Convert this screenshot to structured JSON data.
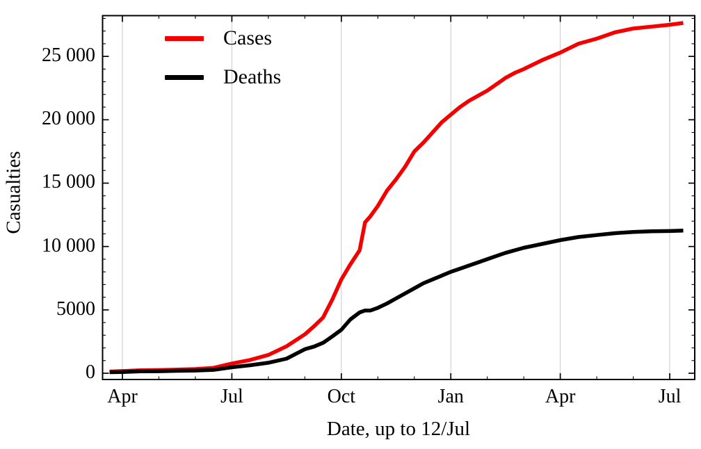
{
  "figure": {
    "background": "#ffffff",
    "frame_color": "#000000",
    "grid_color": "#c9c9c9",
    "text_color": "#000000"
  },
  "chart_data": {
    "type": "line",
    "title": "",
    "xlabel": "Date, up to 12/Jul",
    "ylabel": "Casualties",
    "x_axis": {
      "unit": "months since 1 Apr 2014",
      "range": [
        -0.55,
        15.69
      ],
      "major_ticks": [
        {
          "t": 0,
          "label": "Apr"
        },
        {
          "t": 3,
          "label": "Jul"
        },
        {
          "t": 6,
          "label": "Oct"
        },
        {
          "t": 9,
          "label": "Jan"
        },
        {
          "t": 12,
          "label": "Apr"
        },
        {
          "t": 15,
          "label": "Jul"
        }
      ],
      "minor_tick_every_months": 1,
      "gridlines_at_major_ticks": true
    },
    "y_axis": {
      "range": [
        -500,
        28200
      ],
      "major_ticks": [
        {
          "v": 0,
          "label": "0"
        },
        {
          "v": 5000,
          "label": "5000"
        },
        {
          "v": 10000,
          "label": "10 000"
        },
        {
          "v": 15000,
          "label": "15 000"
        },
        {
          "v": 20000,
          "label": "20 000"
        },
        {
          "v": 25000,
          "label": "25 000"
        }
      ],
      "minor_tick_every": 1000,
      "gridlines": false
    },
    "legend": {
      "position": "top-left-inside",
      "entries": [
        {
          "label": "Cases",
          "color": "#f40000"
        },
        {
          "label": "Deaths",
          "color": "#000000"
        }
      ]
    },
    "series": [
      {
        "name": "Cases",
        "color": "#f40000",
        "stroke_width": 5.5,
        "points_t_v": [
          [
            -0.35,
            130
          ],
          [
            0,
            170
          ],
          [
            0.5,
            230
          ],
          [
            1,
            250
          ],
          [
            1.5,
            290
          ],
          [
            2,
            330
          ],
          [
            2.5,
            430
          ],
          [
            3,
            760
          ],
          [
            3.5,
            1050
          ],
          [
            4,
            1440
          ],
          [
            4.5,
            2130
          ],
          [
            5,
            3070
          ],
          [
            5.25,
            3700
          ],
          [
            5.5,
            4400
          ],
          [
            5.75,
            5800
          ],
          [
            6,
            7400
          ],
          [
            6.25,
            8600
          ],
          [
            6.5,
            9700
          ],
          [
            6.65,
            11900
          ],
          [
            6.8,
            12400
          ],
          [
            7,
            13200
          ],
          [
            7.25,
            14400
          ],
          [
            7.5,
            15300
          ],
          [
            7.75,
            16300
          ],
          [
            8,
            17500
          ],
          [
            8.25,
            18200
          ],
          [
            8.5,
            19000
          ],
          [
            8.75,
            19800
          ],
          [
            9,
            20400
          ],
          [
            9.25,
            21000
          ],
          [
            9.5,
            21500
          ],
          [
            9.75,
            21900
          ],
          [
            10,
            22300
          ],
          [
            10.25,
            22800
          ],
          [
            10.5,
            23300
          ],
          [
            10.75,
            23700
          ],
          [
            11,
            24000
          ],
          [
            11.5,
            24700
          ],
          [
            12,
            25300
          ],
          [
            12.5,
            26000
          ],
          [
            13,
            26400
          ],
          [
            13.5,
            26900
          ],
          [
            14,
            27200
          ],
          [
            14.5,
            27350
          ],
          [
            15,
            27500
          ],
          [
            15.37,
            27640
          ]
        ]
      },
      {
        "name": "Deaths",
        "color": "#000000",
        "stroke_width": 5.5,
        "points_t_v": [
          [
            -0.35,
            82
          ],
          [
            0,
            100
          ],
          [
            0.5,
            150
          ],
          [
            1,
            160
          ],
          [
            1.5,
            190
          ],
          [
            2,
            215
          ],
          [
            2.5,
            270
          ],
          [
            3,
            470
          ],
          [
            3.5,
            630
          ],
          [
            4,
            830
          ],
          [
            4.5,
            1150
          ],
          [
            5,
            1900
          ],
          [
            5.25,
            2100
          ],
          [
            5.5,
            2400
          ],
          [
            5.75,
            2900
          ],
          [
            6,
            3430
          ],
          [
            6.25,
            4250
          ],
          [
            6.5,
            4800
          ],
          [
            6.65,
            4950
          ],
          [
            6.8,
            4950
          ],
          [
            7,
            5160
          ],
          [
            7.25,
            5500
          ],
          [
            7.5,
            5900
          ],
          [
            7.75,
            6300
          ],
          [
            8,
            6700
          ],
          [
            8.25,
            7100
          ],
          [
            8.5,
            7400
          ],
          [
            8.75,
            7700
          ],
          [
            9,
            8000
          ],
          [
            9.25,
            8250
          ],
          [
            9.5,
            8500
          ],
          [
            9.75,
            8750
          ],
          [
            10,
            9000
          ],
          [
            10.25,
            9250
          ],
          [
            10.5,
            9500
          ],
          [
            10.75,
            9700
          ],
          [
            11,
            9900
          ],
          [
            11.5,
            10200
          ],
          [
            12,
            10500
          ],
          [
            12.5,
            10750
          ],
          [
            13,
            10900
          ],
          [
            13.5,
            11050
          ],
          [
            14,
            11150
          ],
          [
            14.5,
            11200
          ],
          [
            15,
            11220
          ],
          [
            15.37,
            11260
          ]
        ]
      }
    ]
  }
}
